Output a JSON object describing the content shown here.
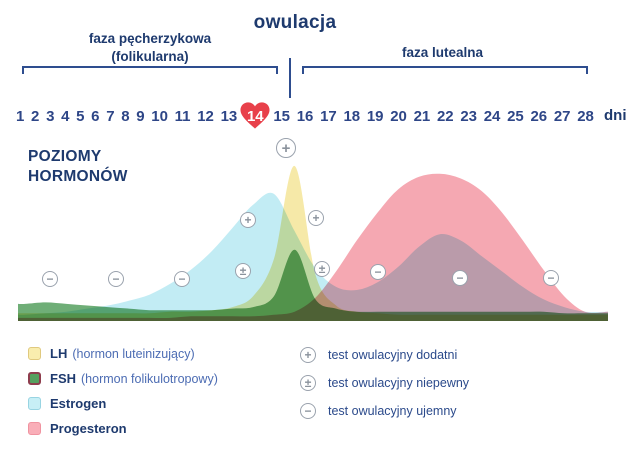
{
  "title": "owulacja",
  "phases": {
    "follicular_line1": "faza pęcherzykowa",
    "follicular_line2": "(folikularna)",
    "luteal": "faza lutealna"
  },
  "axis": {
    "label_line1": "POZIOMY",
    "label_line2": "HORMONÓW",
    "unit": "dni"
  },
  "days": [
    "1",
    "2",
    "3",
    "4",
    "5",
    "6",
    "7",
    "8",
    "9",
    "10",
    "11",
    "12",
    "13",
    "14",
    "15",
    "16",
    "17",
    "18",
    "19",
    "20",
    "21",
    "22",
    "23",
    "24",
    "25",
    "26",
    "27",
    "28"
  ],
  "ovulation": {
    "day": "14",
    "heart_color": "#e8404a"
  },
  "hormone_legend": [
    {
      "name": "LH",
      "desc": "(hormon luteinizujący)",
      "color": "#f9edae"
    },
    {
      "name": "FSH",
      "desc": "(hormon folikulotropowy)",
      "color": "#55a15f"
    },
    {
      "name": "Estrogen",
      "desc": "",
      "color": "#c7eff6"
    },
    {
      "name": "Progesteron",
      "desc": "",
      "color": "#f9aeb8"
    }
  ],
  "test_legend": [
    {
      "symbol": "+",
      "label": "test owulacyjny dodatni"
    },
    {
      "symbol": "±",
      "label": "test owulacyjny niepewny"
    },
    {
      "symbol": "−",
      "label": "test owulacyjny ujemny"
    }
  ],
  "colors": {
    "heading_navy": "#1e3a6e",
    "bracket_navy": "#2e4d8f",
    "text_blue": "#4c6cb3",
    "heart_red": "#e8404a",
    "marker_gray": "#9aa2ad"
  },
  "chart_data": {
    "type": "area",
    "title": "owulacja",
    "x_label": "dni",
    "x_range": [
      1,
      28
    ],
    "x": [
      1,
      2,
      3,
      4,
      5,
      6,
      7,
      8,
      9,
      10,
      11,
      12,
      13,
      14,
      15,
      16,
      17,
      18,
      19,
      20,
      21,
      22,
      23,
      24,
      25,
      26,
      27,
      28
    ],
    "ovulation_day": 14,
    "ylim": [
      0,
      100
    ],
    "grid": false,
    "legend_position": "bottom-left",
    "series": [
      {
        "name": "LH",
        "fill": "#f6e9a8",
        "values": [
          5,
          5,
          5,
          5,
          5,
          5,
          5,
          6,
          6,
          7,
          9,
          16,
          40,
          100,
          30,
          10,
          6,
          5,
          4,
          4,
          4,
          4,
          4,
          4,
          4,
          4,
          4,
          4
        ]
      },
      {
        "name": "FSH",
        "fill": "#6fae77",
        "values": [
          11,
          12,
          11,
          10,
          9,
          8,
          7,
          7,
          7,
          7,
          8,
          9,
          16,
          46,
          14,
          8,
          6,
          6,
          6,
          6,
          6,
          6,
          6,
          6,
          6,
          6,
          5,
          5
        ]
      },
      {
        "name": "Estrogen",
        "fill": "#c2ecf4",
        "values": [
          4,
          5,
          6,
          8,
          10,
          13,
          17,
          24,
          33,
          45,
          60,
          75,
          82,
          58,
          34,
          22,
          20,
          25,
          35,
          48,
          56,
          52,
          42,
          32,
          22,
          14,
          9,
          6
        ]
      },
      {
        "name": "Progesteron",
        "fill": "#f5a8b2",
        "values": [
          2,
          2,
          2,
          2,
          2,
          2,
          2,
          2,
          3,
          3,
          3,
          3,
          4,
          6,
          15,
          32,
          52,
          70,
          85,
          93,
          95,
          92,
          84,
          70,
          52,
          33,
          16,
          6
        ]
      }
    ],
    "test_markers": [
      {
        "day": 2,
        "result": "negative",
        "symbol": "−"
      },
      {
        "day": 5,
        "result": "negative",
        "symbol": "−"
      },
      {
        "day": 8,
        "result": "negative",
        "symbol": "−"
      },
      {
        "day": 11,
        "result": "uncertain",
        "symbol": "±"
      },
      {
        "day": 12,
        "result": "positive",
        "symbol": "+"
      },
      {
        "day": 14,
        "result": "positive",
        "symbol": "+"
      },
      {
        "day": 15,
        "result": "positive",
        "symbol": "+"
      },
      {
        "day": 16,
        "result": "uncertain",
        "symbol": "±"
      },
      {
        "day": 18,
        "result": "negative",
        "symbol": "−"
      },
      {
        "day": 22,
        "result": "negative",
        "symbol": "−"
      },
      {
        "day": 26,
        "result": "negative",
        "symbol": "−"
      }
    ]
  }
}
